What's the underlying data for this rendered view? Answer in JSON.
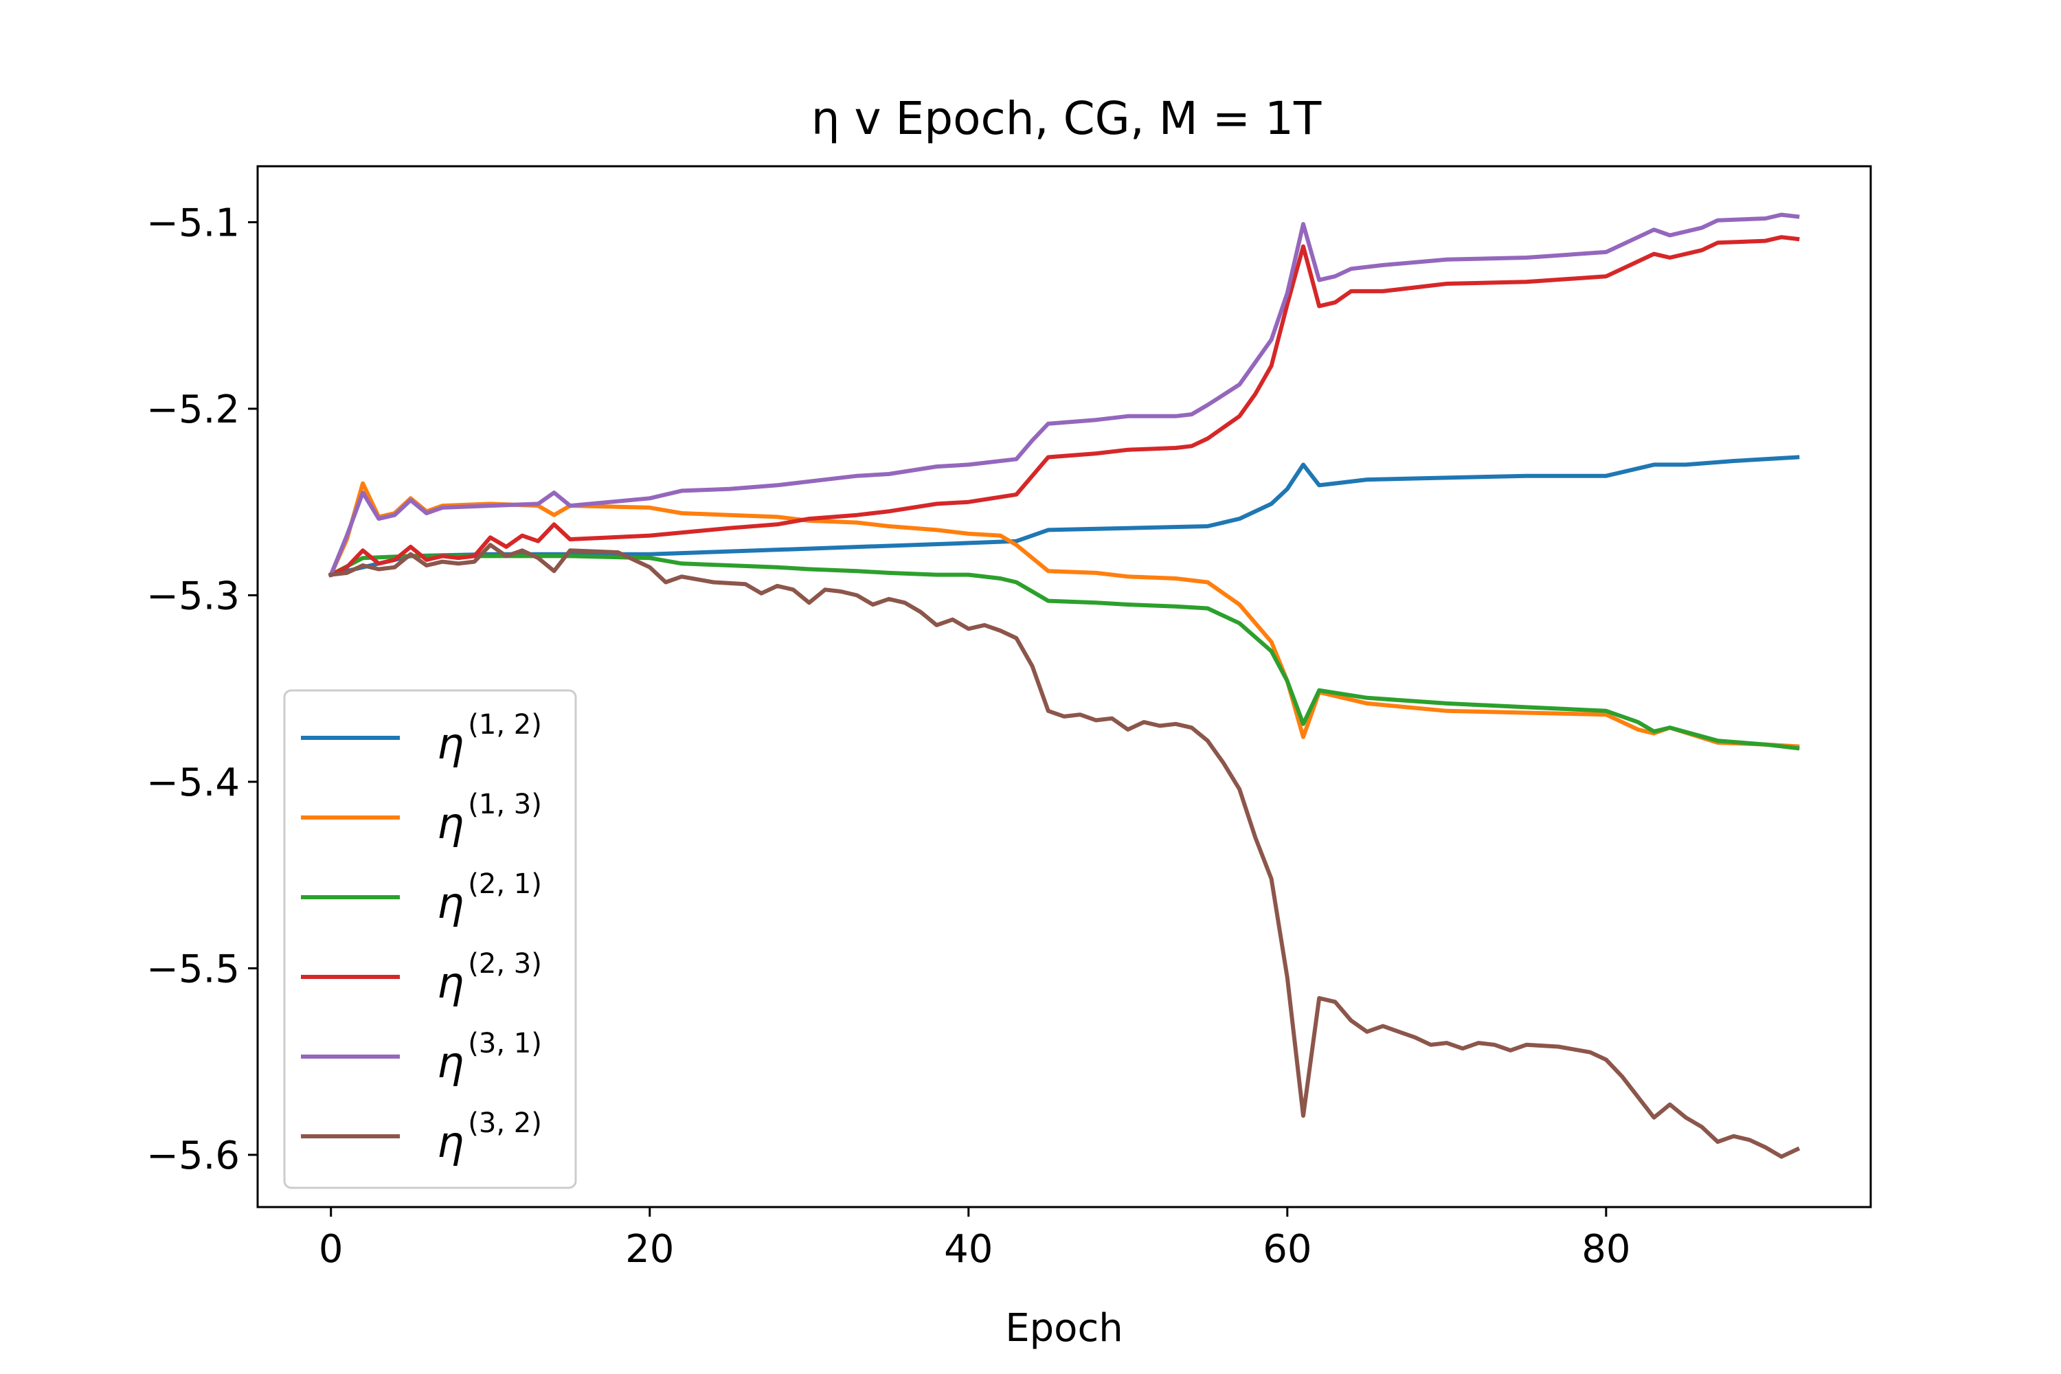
{
  "chart_data": {
    "type": "line",
    "title": "η v Epoch, CG, M = 1T",
    "xlabel": "Epoch",
    "ylabel": "",
    "xlim": [
      -4.6,
      96.6
    ],
    "ylim": [
      -5.628,
      -5.07
    ],
    "xticks": [
      0,
      20,
      40,
      60,
      80
    ],
    "xtick_labels": [
      "0",
      "20",
      "40",
      "60",
      "80"
    ],
    "yticks": [
      -5.1,
      -5.2,
      -5.3,
      -5.4,
      -5.5,
      -5.6
    ],
    "ytick_labels": [
      "−5.1",
      "−5.2",
      "−5.3",
      "−5.4",
      "−5.5",
      "−5.6"
    ],
    "grid": false,
    "legend_position": "lower-left",
    "series": [
      {
        "name": "η^(1,2)",
        "symbol": "η",
        "superscript": "(1, 2)",
        "color": "#1f77b4",
        "points": [
          [
            0,
            -5.289
          ],
          [
            5,
            -5.279
          ],
          [
            10,
            -5.278
          ],
          [
            20,
            -5.278
          ],
          [
            30,
            -5.275
          ],
          [
            40,
            -5.272
          ],
          [
            43,
            -5.271
          ],
          [
            45,
            -5.265
          ],
          [
            50,
            -5.264
          ],
          [
            55,
            -5.263
          ],
          [
            57,
            -5.259
          ],
          [
            59,
            -5.251
          ],
          [
            60,
            -5.243
          ],
          [
            61,
            -5.23
          ],
          [
            62,
            -5.241
          ],
          [
            63,
            -5.24
          ],
          [
            65,
            -5.238
          ],
          [
            70,
            -5.237
          ],
          [
            75,
            -5.236
          ],
          [
            80,
            -5.236
          ],
          [
            83,
            -5.23
          ],
          [
            85,
            -5.23
          ],
          [
            88,
            -5.228
          ],
          [
            92,
            -5.226
          ]
        ]
      },
      {
        "name": "η^(1,3)",
        "symbol": "η",
        "superscript": "(1, 3)",
        "color": "#ff7f0e",
        "points": [
          [
            0,
            -5.289
          ],
          [
            1,
            -5.27
          ],
          [
            2,
            -5.24
          ],
          [
            3,
            -5.258
          ],
          [
            4,
            -5.256
          ],
          [
            5,
            -5.248
          ],
          [
            6,
            -5.255
          ],
          [
            7,
            -5.252
          ],
          [
            10,
            -5.251
          ],
          [
            13,
            -5.252
          ],
          [
            14,
            -5.257
          ],
          [
            15,
            -5.252
          ],
          [
            20,
            -5.253
          ],
          [
            22,
            -5.256
          ],
          [
            25,
            -5.257
          ],
          [
            28,
            -5.258
          ],
          [
            30,
            -5.26
          ],
          [
            33,
            -5.261
          ],
          [
            35,
            -5.263
          ],
          [
            38,
            -5.265
          ],
          [
            40,
            -5.267
          ],
          [
            42,
            -5.268
          ],
          [
            43,
            -5.273
          ],
          [
            44,
            -5.28
          ],
          [
            45,
            -5.287
          ],
          [
            48,
            -5.288
          ],
          [
            50,
            -5.29
          ],
          [
            53,
            -5.291
          ],
          [
            55,
            -5.293
          ],
          [
            57,
            -5.305
          ],
          [
            59,
            -5.325
          ],
          [
            60,
            -5.346
          ],
          [
            61,
            -5.376
          ],
          [
            62,
            -5.352
          ],
          [
            65,
            -5.358
          ],
          [
            70,
            -5.362
          ],
          [
            75,
            -5.363
          ],
          [
            80,
            -5.364
          ],
          [
            82,
            -5.372
          ],
          [
            83,
            -5.374
          ],
          [
            84,
            -5.371
          ],
          [
            87,
            -5.379
          ],
          [
            90,
            -5.38
          ],
          [
            92,
            -5.381
          ]
        ]
      },
      {
        "name": "η^(2,1)",
        "symbol": "η",
        "superscript": "(2, 1)",
        "color": "#2ca02c",
        "points": [
          [
            0,
            -5.289
          ],
          [
            2,
            -5.28
          ],
          [
            5,
            -5.279
          ],
          [
            10,
            -5.279
          ],
          [
            15,
            -5.279
          ],
          [
            20,
            -5.28
          ],
          [
            22,
            -5.283
          ],
          [
            25,
            -5.284
          ],
          [
            28,
            -5.285
          ],
          [
            30,
            -5.286
          ],
          [
            33,
            -5.287
          ],
          [
            35,
            -5.288
          ],
          [
            38,
            -5.289
          ],
          [
            40,
            -5.289
          ],
          [
            42,
            -5.291
          ],
          [
            43,
            -5.293
          ],
          [
            44,
            -5.298
          ],
          [
            45,
            -5.303
          ],
          [
            48,
            -5.304
          ],
          [
            50,
            -5.305
          ],
          [
            53,
            -5.306
          ],
          [
            55,
            -5.307
          ],
          [
            57,
            -5.315
          ],
          [
            59,
            -5.33
          ],
          [
            60,
            -5.346
          ],
          [
            61,
            -5.369
          ],
          [
            62,
            -5.351
          ],
          [
            65,
            -5.355
          ],
          [
            70,
            -5.358
          ],
          [
            75,
            -5.36
          ],
          [
            80,
            -5.362
          ],
          [
            82,
            -5.368
          ],
          [
            83,
            -5.373
          ],
          [
            84,
            -5.371
          ],
          [
            87,
            -5.378
          ],
          [
            90,
            -5.38
          ],
          [
            92,
            -5.382
          ]
        ]
      },
      {
        "name": "η^(2,3)",
        "symbol": "η",
        "superscript": "(2, 3)",
        "color": "#d62728",
        "points": [
          [
            0,
            -5.289
          ],
          [
            1,
            -5.285
          ],
          [
            2,
            -5.276
          ],
          [
            3,
            -5.283
          ],
          [
            4,
            -5.281
          ],
          [
            5,
            -5.274
          ],
          [
            6,
            -5.281
          ],
          [
            7,
            -5.279
          ],
          [
            8,
            -5.28
          ],
          [
            9,
            -5.279
          ],
          [
            10,
            -5.269
          ],
          [
            11,
            -5.274
          ],
          [
            12,
            -5.268
          ],
          [
            13,
            -5.271
          ],
          [
            14,
            -5.262
          ],
          [
            15,
            -5.27
          ],
          [
            20,
            -5.268
          ],
          [
            25,
            -5.264
          ],
          [
            28,
            -5.262
          ],
          [
            30,
            -5.259
          ],
          [
            33,
            -5.257
          ],
          [
            35,
            -5.255
          ],
          [
            38,
            -5.251
          ],
          [
            40,
            -5.25
          ],
          [
            43,
            -5.246
          ],
          [
            44,
            -5.236
          ],
          [
            45,
            -5.226
          ],
          [
            48,
            -5.224
          ],
          [
            50,
            -5.222
          ],
          [
            53,
            -5.221
          ],
          [
            54,
            -5.22
          ],
          [
            55,
            -5.216
          ],
          [
            57,
            -5.204
          ],
          [
            58,
            -5.192
          ],
          [
            59,
            -5.177
          ],
          [
            60,
            -5.144
          ],
          [
            61,
            -5.113
          ],
          [
            62,
            -5.145
          ],
          [
            63,
            -5.143
          ],
          [
            64,
            -5.137
          ],
          [
            66,
            -5.137
          ],
          [
            70,
            -5.133
          ],
          [
            75,
            -5.132
          ],
          [
            80,
            -5.129
          ],
          [
            82,
            -5.121
          ],
          [
            83,
            -5.117
          ],
          [
            84,
            -5.119
          ],
          [
            86,
            -5.115
          ],
          [
            87,
            -5.111
          ],
          [
            90,
            -5.11
          ],
          [
            91,
            -5.108
          ],
          [
            92,
            -5.109
          ]
        ]
      },
      {
        "name": "η^(3,1)",
        "symbol": "η",
        "superscript": "(3, 1)",
        "color": "#9467bd",
        "points": [
          [
            0,
            -5.289
          ],
          [
            1,
            -5.268
          ],
          [
            2,
            -5.245
          ],
          [
            3,
            -5.259
          ],
          [
            4,
            -5.257
          ],
          [
            5,
            -5.249
          ],
          [
            6,
            -5.256
          ],
          [
            7,
            -5.253
          ],
          [
            10,
            -5.252
          ],
          [
            13,
            -5.251
          ],
          [
            14,
            -5.245
          ],
          [
            15,
            -5.252
          ],
          [
            20,
            -5.248
          ],
          [
            22,
            -5.244
          ],
          [
            25,
            -5.243
          ],
          [
            28,
            -5.241
          ],
          [
            30,
            -5.239
          ],
          [
            33,
            -5.236
          ],
          [
            35,
            -5.235
          ],
          [
            38,
            -5.231
          ],
          [
            40,
            -5.23
          ],
          [
            43,
            -5.227
          ],
          [
            44,
            -5.217
          ],
          [
            45,
            -5.208
          ],
          [
            48,
            -5.206
          ],
          [
            50,
            -5.204
          ],
          [
            53,
            -5.204
          ],
          [
            54,
            -5.203
          ],
          [
            55,
            -5.198
          ],
          [
            57,
            -5.187
          ],
          [
            58,
            -5.175
          ],
          [
            59,
            -5.163
          ],
          [
            60,
            -5.138
          ],
          [
            61,
            -5.101
          ],
          [
            62,
            -5.131
          ],
          [
            63,
            -5.129
          ],
          [
            64,
            -5.125
          ],
          [
            66,
            -5.123
          ],
          [
            70,
            -5.12
          ],
          [
            75,
            -5.119
          ],
          [
            80,
            -5.116
          ],
          [
            82,
            -5.108
          ],
          [
            83,
            -5.104
          ],
          [
            84,
            -5.107
          ],
          [
            86,
            -5.103
          ],
          [
            87,
            -5.099
          ],
          [
            90,
            -5.098
          ],
          [
            91,
            -5.096
          ],
          [
            92,
            -5.097
          ]
        ]
      },
      {
        "name": "η^(3,2)",
        "symbol": "η",
        "superscript": "(3, 2)",
        "color": "#8c564b",
        "points": [
          [
            0,
            -5.289
          ],
          [
            1,
            -5.288
          ],
          [
            2,
            -5.284
          ],
          [
            3,
            -5.286
          ],
          [
            4,
            -5.285
          ],
          [
            5,
            -5.278
          ],
          [
            6,
            -5.284
          ],
          [
            7,
            -5.282
          ],
          [
            8,
            -5.283
          ],
          [
            9,
            -5.282
          ],
          [
            10,
            -5.273
          ],
          [
            11,
            -5.279
          ],
          [
            12,
            -5.276
          ],
          [
            13,
            -5.28
          ],
          [
            14,
            -5.287
          ],
          [
            15,
            -5.276
          ],
          [
            18,
            -5.277
          ],
          [
            20,
            -5.285
          ],
          [
            21,
            -5.293
          ],
          [
            22,
            -5.29
          ],
          [
            24,
            -5.293
          ],
          [
            26,
            -5.294
          ],
          [
            27,
            -5.299
          ],
          [
            28,
            -5.295
          ],
          [
            29,
            -5.297
          ],
          [
            30,
            -5.304
          ],
          [
            31,
            -5.297
          ],
          [
            32,
            -5.298
          ],
          [
            33,
            -5.3
          ],
          [
            34,
            -5.305
          ],
          [
            35,
            -5.302
          ],
          [
            36,
            -5.304
          ],
          [
            37,
            -5.309
          ],
          [
            38,
            -5.316
          ],
          [
            39,
            -5.313
          ],
          [
            40,
            -5.318
          ],
          [
            41,
            -5.316
          ],
          [
            42,
            -5.319
          ],
          [
            43,
            -5.323
          ],
          [
            44,
            -5.338
          ],
          [
            45,
            -5.362
          ],
          [
            46,
            -5.365
          ],
          [
            47,
            -5.364
          ],
          [
            48,
            -5.367
          ],
          [
            49,
            -5.366
          ],
          [
            50,
            -5.372
          ],
          [
            51,
            -5.368
          ],
          [
            52,
            -5.37
          ],
          [
            53,
            -5.369
          ],
          [
            54,
            -5.371
          ],
          [
            55,
            -5.378
          ],
          [
            56,
            -5.39
          ],
          [
            57,
            -5.404
          ],
          [
            58,
            -5.43
          ],
          [
            59,
            -5.452
          ],
          [
            60,
            -5.505
          ],
          [
            61,
            -5.579
          ],
          [
            62,
            -5.516
          ],
          [
            63,
            -5.518
          ],
          [
            64,
            -5.528
          ],
          [
            65,
            -5.534
          ],
          [
            66,
            -5.531
          ],
          [
            67,
            -5.534
          ],
          [
            68,
            -5.537
          ],
          [
            69,
            -5.541
          ],
          [
            70,
            -5.54
          ],
          [
            71,
            -5.543
          ],
          [
            72,
            -5.54
          ],
          [
            73,
            -5.541
          ],
          [
            74,
            -5.544
          ],
          [
            75,
            -5.541
          ],
          [
            77,
            -5.542
          ],
          [
            79,
            -5.545
          ],
          [
            80,
            -5.549
          ],
          [
            81,
            -5.558
          ],
          [
            82,
            -5.569
          ],
          [
            83,
            -5.58
          ],
          [
            84,
            -5.573
          ],
          [
            85,
            -5.58
          ],
          [
            86,
            -5.585
          ],
          [
            87,
            -5.593
          ],
          [
            88,
            -5.59
          ],
          [
            89,
            -5.592
          ],
          [
            90,
            -5.596
          ],
          [
            91,
            -5.601
          ],
          [
            92,
            -5.597
          ]
        ]
      }
    ]
  }
}
